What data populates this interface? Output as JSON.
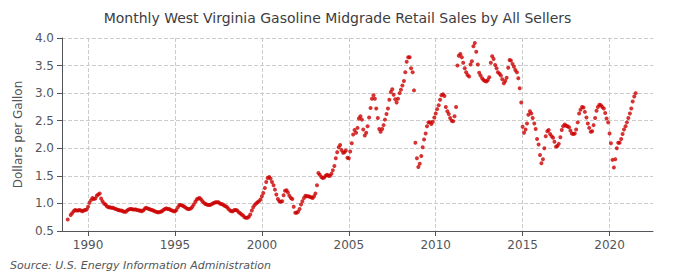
{
  "chart_data": {
    "type": "scatter",
    "title": "Monthly West Virginia Gasoline Midgrade Retail Sales by All Sellers",
    "ylabel": "Dollars per Gallon",
    "annotations": [
      "Source: U.S. Energy Information Administration"
    ],
    "color": "#CC0000",
    "grid": true,
    "xlim": [
      1988.5,
      2022.5
    ],
    "xticks": [
      1990,
      1995,
      2000,
      2005,
      2010,
      2015,
      2020
    ],
    "ylim": [
      0.5,
      4.0
    ],
    "yticks": [
      0.5,
      {
        "value": 1.0,
        "label": "1.0"
      },
      1.5,
      {
        "value": 2.0,
        "label": "2.0"
      },
      2.5,
      {
        "value": 3.0,
        "label": "3.0"
      },
      3.5,
      {
        "value": 4.0,
        "label": "4.0"
      }
    ],
    "x": [
      1988.83,
      1989.0,
      1989.08,
      1989.17,
      1989.25,
      1989.33,
      1989.42,
      1989.5,
      1989.58,
      1989.67,
      1989.75,
      1989.83,
      1989.92,
      1990.0,
      1990.08,
      1990.17,
      1990.25,
      1990.33,
      1990.42,
      1990.5,
      1990.58,
      1990.67,
      1990.75,
      1990.83,
      1990.92,
      1991.0,
      1991.08,
      1991.17,
      1991.25,
      1991.33,
      1991.42,
      1991.5,
      1991.58,
      1991.67,
      1991.75,
      1991.83,
      1991.92,
      1992.0,
      1992.08,
      1992.17,
      1992.25,
      1992.33,
      1992.42,
      1992.5,
      1992.58,
      1992.67,
      1992.75,
      1992.83,
      1992.92,
      1993.0,
      1993.08,
      1993.17,
      1993.25,
      1993.33,
      1993.42,
      1993.5,
      1993.58,
      1993.67,
      1993.75,
      1993.83,
      1993.92,
      1994.0,
      1994.08,
      1994.17,
      1994.25,
      1994.33,
      1994.42,
      1994.5,
      1994.58,
      1994.67,
      1994.75,
      1994.83,
      1994.92,
      1995.0,
      1995.08,
      1995.17,
      1995.25,
      1995.33,
      1995.42,
      1995.5,
      1995.58,
      1995.67,
      1995.75,
      1995.83,
      1995.92,
      1996.0,
      1996.08,
      1996.17,
      1996.25,
      1996.33,
      1996.42,
      1996.5,
      1996.58,
      1996.67,
      1996.75,
      1996.83,
      1996.92,
      1997.0,
      1997.08,
      1997.17,
      1997.25,
      1997.33,
      1997.42,
      1997.5,
      1997.58,
      1997.67,
      1997.75,
      1997.83,
      1997.92,
      1998.0,
      1998.08,
      1998.17,
      1998.25,
      1998.33,
      1998.42,
      1998.5,
      1998.58,
      1998.67,
      1998.75,
      1998.83,
      1998.92,
      1999.0,
      1999.08,
      1999.17,
      1999.25,
      1999.33,
      1999.42,
      1999.5,
      1999.58,
      1999.67,
      1999.75,
      1999.83,
      1999.92,
      2000.0,
      2000.08,
      2000.17,
      2000.25,
      2000.33,
      2000.42,
      2000.5,
      2000.58,
      2000.67,
      2000.75,
      2000.83,
      2000.92,
      2001.0,
      2001.08,
      2001.17,
      2001.25,
      2001.33,
      2001.42,
      2001.5,
      2001.58,
      2001.67,
      2001.75,
      2001.83,
      2001.92,
      2002.0,
      2002.08,
      2002.17,
      2002.25,
      2002.33,
      2002.42,
      2002.5,
      2002.58,
      2002.67,
      2002.75,
      2002.83,
      2002.92,
      2003.0,
      2003.08,
      2003.17,
      2003.25,
      2003.33,
      2003.42,
      2003.5,
      2003.58,
      2003.67,
      2003.75,
      2003.83,
      2003.92,
      2004.0,
      2004.08,
      2004.17,
      2004.25,
      2004.33,
      2004.42,
      2004.5,
      2004.58,
      2004.67,
      2004.75,
      2004.83,
      2004.92,
      2005.0,
      2005.08,
      2005.17,
      2005.25,
      2005.33,
      2005.42,
      2005.5,
      2005.58,
      2005.67,
      2005.75,
      2005.83,
      2005.92,
      2006.0,
      2006.08,
      2006.17,
      2006.25,
      2006.33,
      2006.42,
      2006.5,
      2006.58,
      2006.67,
      2006.75,
      2006.83,
      2006.92,
      2007.0,
      2007.08,
      2007.17,
      2007.25,
      2007.33,
      2007.42,
      2007.5,
      2007.58,
      2007.67,
      2007.75,
      2007.83,
      2007.92,
      2008.0,
      2008.08,
      2008.17,
      2008.25,
      2008.33,
      2008.42,
      2008.5,
      2008.58,
      2008.67,
      2008.75,
      2008.83,
      2008.92,
      2009.0,
      2009.08,
      2009.17,
      2009.25,
      2009.33,
      2009.42,
      2009.5,
      2009.58,
      2009.67,
      2009.75,
      2009.83,
      2009.92,
      2010.0,
      2010.08,
      2010.17,
      2010.25,
      2010.33,
      2010.42,
      2010.5,
      2010.58,
      2010.67,
      2010.75,
      2010.83,
      2010.92,
      2011.0,
      2011.08,
      2011.17,
      2011.25,
      2011.33,
      2011.42,
      2011.5,
      2011.58,
      2011.67,
      2011.75,
      2011.83,
      2011.92,
      2012.0,
      2012.08,
      2012.17,
      2012.25,
      2012.33,
      2012.42,
      2012.5,
      2012.58,
      2012.67,
      2012.75,
      2012.83,
      2012.92,
      2013.0,
      2013.08,
      2013.17,
      2013.25,
      2013.33,
      2013.42,
      2013.5,
      2013.58,
      2013.67,
      2013.75,
      2013.83,
      2013.92,
      2014.0,
      2014.08,
      2014.17,
      2014.25,
      2014.33,
      2014.42,
      2014.5,
      2014.58,
      2014.67,
      2014.75,
      2014.83,
      2014.92,
      2015.0,
      2015.08,
      2015.17,
      2015.25,
      2015.33,
      2015.42,
      2015.5,
      2015.58,
      2015.67,
      2015.75,
      2015.83,
      2015.92,
      2016.0,
      2016.08,
      2016.17,
      2016.25,
      2016.33,
      2016.42,
      2016.5,
      2016.58,
      2016.67,
      2016.75,
      2016.83,
      2016.92,
      2017.0,
      2017.08,
      2017.17,
      2017.25,
      2017.33,
      2017.42,
      2017.5,
      2017.58,
      2017.67,
      2017.75,
      2017.83,
      2017.92,
      2018.0,
      2018.08,
      2018.17,
      2018.25,
      2018.33,
      2018.42,
      2018.5,
      2018.58,
      2018.67,
      2018.75,
      2018.83,
      2018.92,
      2019.0,
      2019.08,
      2019.17,
      2019.25,
      2019.33,
      2019.42,
      2019.5,
      2019.58,
      2019.67,
      2019.75,
      2019.83,
      2019.92,
      2020.0,
      2020.08,
      2020.17,
      2020.25,
      2020.33,
      2020.42,
      2020.5,
      2020.58,
      2020.67,
      2020.75,
      2020.83,
      2020.92,
      2021.0,
      2021.08,
      2021.17,
      2021.25,
      2021.33,
      2021.42,
      2021.5
    ],
    "values": [
      0.71,
      0.79,
      0.82,
      0.86,
      0.88,
      0.87,
      0.87,
      0.88,
      0.87,
      0.86,
      0.87,
      0.88,
      0.89,
      0.94,
      1.01,
      1.06,
      1.1,
      1.08,
      1.09,
      1.14,
      1.16,
      1.18,
      1.09,
      1.04,
      1.0,
      0.98,
      0.95,
      0.93,
      0.93,
      0.92,
      0.92,
      0.91,
      0.9,
      0.89,
      0.88,
      0.87,
      0.87,
      0.86,
      0.85,
      0.85,
      0.87,
      0.89,
      0.9,
      0.9,
      0.89,
      0.89,
      0.89,
      0.88,
      0.87,
      0.87,
      0.86,
      0.87,
      0.9,
      0.92,
      0.91,
      0.9,
      0.89,
      0.88,
      0.87,
      0.86,
      0.85,
      0.84,
      0.84,
      0.85,
      0.86,
      0.88,
      0.9,
      0.91,
      0.9,
      0.9,
      0.88,
      0.87,
      0.86,
      0.86,
      0.88,
      0.93,
      0.97,
      0.97,
      0.96,
      0.95,
      0.93,
      0.91,
      0.9,
      0.9,
      0.91,
      0.94,
      0.98,
      1.03,
      1.07,
      1.09,
      1.1,
      1.07,
      1.04,
      1.01,
      0.99,
      0.98,
      0.97,
      0.97,
      0.98,
      1.0,
      1.01,
      1.02,
      1.02,
      1.02,
      1.0,
      0.99,
      0.98,
      0.96,
      0.95,
      0.93,
      0.9,
      0.87,
      0.86,
      0.86,
      0.88,
      0.88,
      0.87,
      0.84,
      0.82,
      0.8,
      0.78,
      0.75,
      0.74,
      0.74,
      0.76,
      0.8,
      0.87,
      0.93,
      0.97,
      1.0,
      1.02,
      1.04,
      1.07,
      1.13,
      1.19,
      1.28,
      1.39,
      1.46,
      1.48,
      1.45,
      1.39,
      1.33,
      1.25,
      1.16,
      1.08,
      1.04,
      1.03,
      1.04,
      1.15,
      1.23,
      1.24,
      1.2,
      1.14,
      1.1,
      1.08,
      0.94,
      0.83,
      0.83,
      0.85,
      0.9,
      0.98,
      1.04,
      1.1,
      1.14,
      1.13,
      1.13,
      1.12,
      1.11,
      1.1,
      1.13,
      1.18,
      1.33,
      1.55,
      1.52,
      1.48,
      1.46,
      1.47,
      1.5,
      1.52,
      1.5,
      1.5,
      1.54,
      1.6,
      1.68,
      1.82,
      1.93,
      2.02,
      2.06,
      1.97,
      1.92,
      1.93,
      1.96,
      1.83,
      1.82,
      1.94,
      2.09,
      2.25,
      2.33,
      2.28,
      2.37,
      2.54,
      2.58,
      2.52,
      2.34,
      2.23,
      2.28,
      2.4,
      2.56,
      2.73,
      2.9,
      2.96,
      2.9,
      2.72,
      2.55,
      2.35,
      2.3,
      2.35,
      2.42,
      2.52,
      2.62,
      2.72,
      2.88,
      3.02,
      3.07,
      2.97,
      2.89,
      2.83,
      2.9,
      3.0,
      3.06,
      3.14,
      3.22,
      3.38,
      3.57,
      3.65,
      3.65,
      3.45,
      3.38,
      3.05,
      2.1,
      1.82,
      1.66,
      1.72,
      1.86,
      2.02,
      2.16,
      2.27,
      2.4,
      2.47,
      2.47,
      2.44,
      2.48,
      2.56,
      2.63,
      2.71,
      2.78,
      2.88,
      2.96,
      2.98,
      2.95,
      2.75,
      2.67,
      2.62,
      2.55,
      2.5,
      2.49,
      2.58,
      2.75,
      3.5,
      3.68,
      3.71,
      3.65,
      3.55,
      3.45,
      3.38,
      3.33,
      3.3,
      3.52,
      3.58,
      3.85,
      3.91,
      3.75,
      3.52,
      3.37,
      3.32,
      3.27,
      3.24,
      3.22,
      3.21,
      3.24,
      3.29,
      3.55,
      3.67,
      3.62,
      3.51,
      3.45,
      3.38,
      3.35,
      3.32,
      3.25,
      3.18,
      3.22,
      3.28,
      3.46,
      3.6,
      3.59,
      3.53,
      3.48,
      3.42,
      3.38,
      3.27,
      3.09,
      2.83,
      2.39,
      2.28,
      2.34,
      2.45,
      2.61,
      2.67,
      2.63,
      2.55,
      2.45,
      2.35,
      2.17,
      2.07,
      1.88,
      1.73,
      1.8,
      2.0,
      2.22,
      2.31,
      2.33,
      2.26,
      2.22,
      2.19,
      2.12,
      2.03,
      2.04,
      2.08,
      2.2,
      2.33,
      2.4,
      2.43,
      2.41,
      2.4,
      2.38,
      2.32,
      2.27,
      2.26,
      2.27,
      2.34,
      2.47,
      2.63,
      2.7,
      2.75,
      2.74,
      2.66,
      2.56,
      2.45,
      2.37,
      2.3,
      2.31,
      2.42,
      2.55,
      2.68,
      2.75,
      2.79,
      2.78,
      2.75,
      2.72,
      2.64,
      2.54,
      2.47,
      2.27,
      2.09,
      1.79,
      1.65,
      1.8,
      2.0,
      2.1,
      2.1,
      2.17,
      2.26,
      2.34,
      2.4,
      2.47,
      2.55,
      2.63,
      2.72,
      2.85,
      2.94,
      3.0
    ]
  }
}
